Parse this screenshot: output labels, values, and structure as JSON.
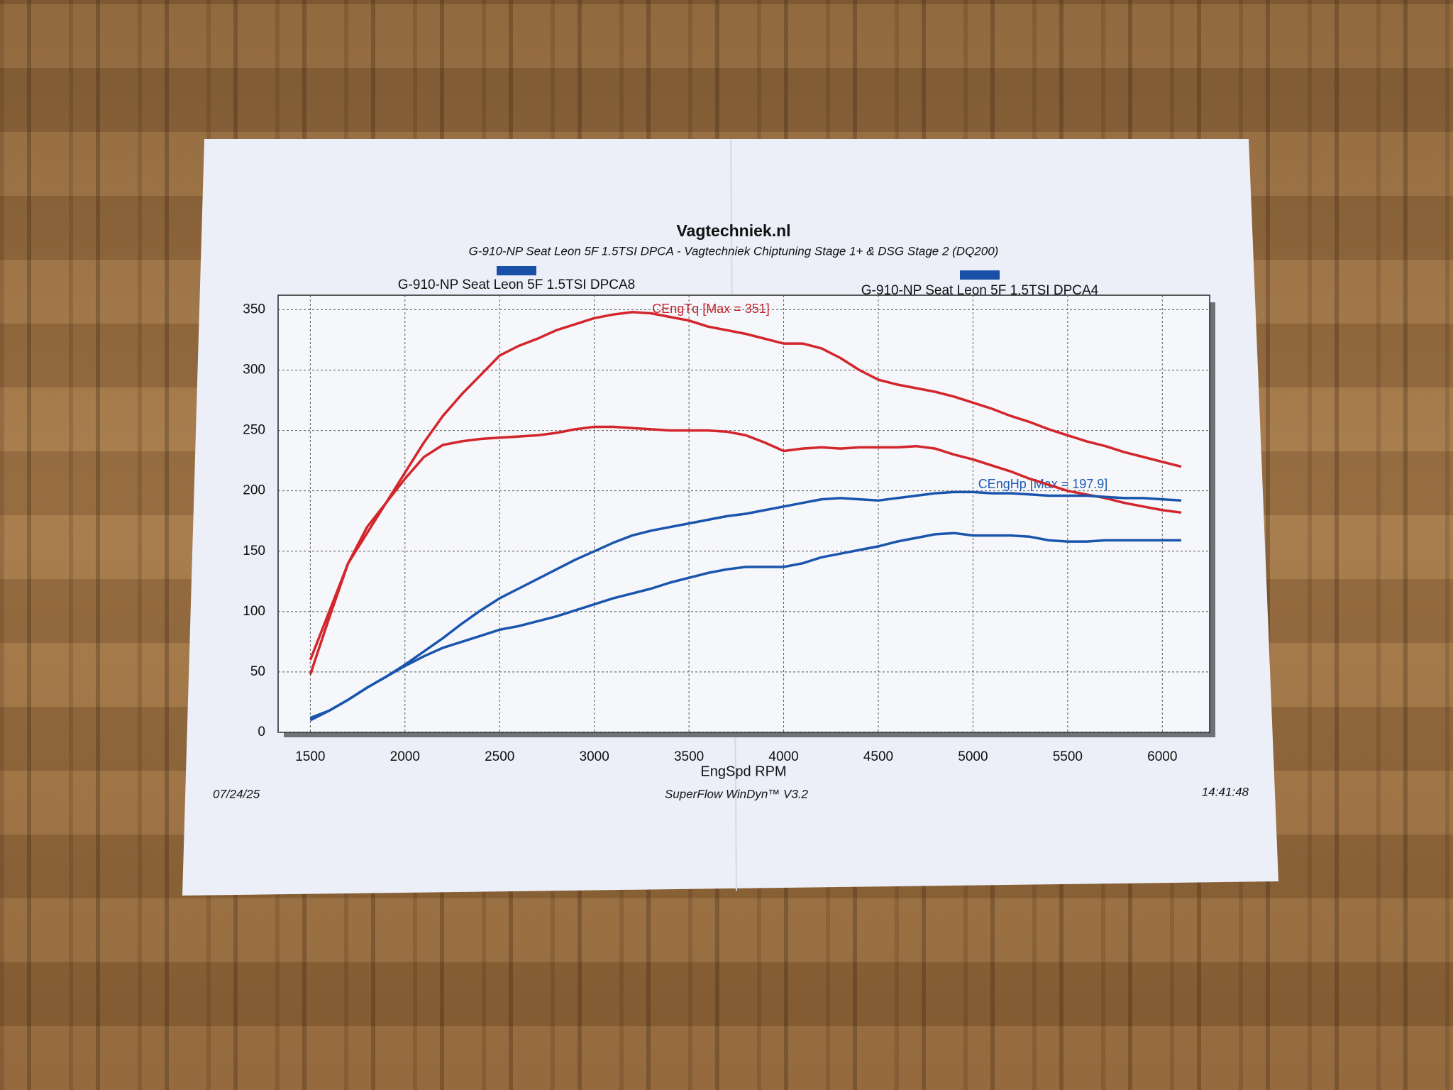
{
  "chart_data": {
    "type": "line",
    "title": "Vagtechniek.nl",
    "subtitle": "G-910-NP Seat Leon 5F 1.5TSI DPCA - Vagtechniek Chiptuning Stage 1+ & DSG Stage 2 (DQ200)",
    "legend": [
      {
        "label": "G-910-NP Seat Leon 5F 1.5TSI DPCA8",
        "color": "#1a4fa8"
      },
      {
        "label": "G-910-NP Seat Leon 5F 1.5TSI DPCA4",
        "color": "#1a4fa8"
      }
    ],
    "annotations": [
      {
        "text": "CEngTq [Max = 351]",
        "color": "#c0262c"
      },
      {
        "text": "CEngHp [Max = 197.9]",
        "color": "#1f5ab0"
      }
    ],
    "x_label": "EngSpd RPM",
    "x": [
      1500,
      1600,
      1700,
      1800,
      1900,
      2000,
      2100,
      2200,
      2300,
      2400,
      2500,
      2600,
      2700,
      2800,
      2900,
      3000,
      3100,
      3200,
      3300,
      3400,
      3500,
      3600,
      3700,
      3800,
      3900,
      4000,
      4100,
      4200,
      4300,
      4400,
      4500,
      4600,
      4700,
      4800,
      4900,
      5000,
      5100,
      5200,
      5300,
      5400,
      5500,
      5600,
      5700,
      5800,
      5900,
      6000,
      6100
    ],
    "series": [
      {
        "color": "#d2262c",
        "values": [
          60,
          100,
          140,
          165,
          190,
          215,
          240,
          262,
          280,
          296,
          312,
          320,
          326,
          333,
          338,
          343,
          346,
          348,
          347,
          344,
          341,
          336,
          333,
          330,
          326,
          322,
          322,
          318,
          310,
          300,
          292,
          288,
          285,
          282,
          278,
          273,
          268,
          262,
          257,
          251,
          246,
          241,
          237,
          232,
          228,
          224,
          220
        ]
      },
      {
        "color": "#d2262c",
        "values": [
          48,
          95,
          140,
          170,
          190,
          210,
          228,
          238,
          241,
          243,
          244,
          245,
          246,
          248,
          251,
          253,
          253,
          252,
          251,
          250,
          250,
          250,
          249,
          246,
          240,
          233,
          235,
          236,
          235,
          236,
          236,
          236,
          237,
          235,
          230,
          226,
          221,
          216,
          210,
          205,
          200,
          197,
          194,
          190,
          187,
          184,
          182
        ]
      },
      {
        "color": "#1a55ad",
        "values": [
          12,
          18,
          27,
          37,
          46,
          56,
          67,
          78,
          90,
          101,
          111,
          119,
          127,
          135,
          143,
          150,
          157,
          163,
          167,
          170,
          173,
          176,
          179,
          181,
          184,
          187,
          190,
          193,
          194,
          193,
          192,
          194,
          196,
          198,
          199,
          199,
          198,
          198,
          197,
          196,
          196,
          196,
          195,
          194,
          194,
          193,
          192
        ]
      },
      {
        "color": "#1a55ad",
        "values": [
          10,
          18,
          27,
          37,
          46,
          55,
          63,
          70,
          75,
          80,
          85,
          88,
          92,
          96,
          101,
          106,
          111,
          115,
          119,
          124,
          128,
          132,
          135,
          137,
          137,
          137,
          140,
          145,
          148,
          151,
          154,
          158,
          161,
          164,
          165,
          163,
          163,
          163,
          162,
          159,
          158,
          158,
          159,
          159,
          159,
          159,
          159
        ]
      }
    ],
    "xlim": [
      1330,
      6250
    ],
    "ylim": [
      0,
      362
    ],
    "xticks": [
      1500,
      2000,
      2500,
      3000,
      3500,
      4000,
      4500,
      5000,
      5500,
      6000
    ],
    "yticks": [
      0,
      50,
      100,
      150,
      200,
      250,
      300,
      350
    ],
    "grid": true,
    "footer": {
      "date": "07/24/25",
      "software": "SuperFlow WinDyn™ V3.2",
      "time": "14:41:48"
    }
  }
}
